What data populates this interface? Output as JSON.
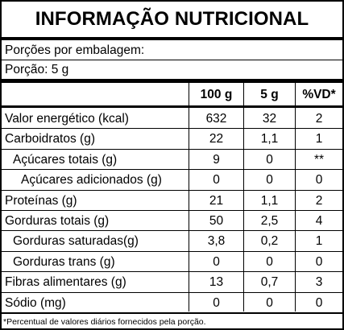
{
  "title": "INFORMAÇÃO NUTRICIONAL",
  "servings_per_package_label": "Porções por embalagem:",
  "serving_size_label": "Porção: 5 g",
  "columns": [
    "100 g",
    "5 g",
    "%VD*"
  ],
  "rows": [
    {
      "name": "Valor energético (kcal)",
      "per100": "632",
      "perServing": "32",
      "vd": "2"
    },
    {
      "name": "Carboidratos (g)",
      "per100": "22",
      "perServing": "1,1",
      "vd": "1"
    },
    {
      "name": "Açúcares totais (g)",
      "per100": "9",
      "perServing": "0",
      "vd": "**"
    },
    {
      "name": "Açúcares adicionados (g)",
      "per100": "0",
      "perServing": "0",
      "vd": "0"
    },
    {
      "name": "Proteínas (g)",
      "per100": "21",
      "perServing": "1,1",
      "vd": "2"
    },
    {
      "name": "Gorduras totais (g)",
      "per100": "50",
      "perServing": "2,5",
      "vd": "4"
    },
    {
      "name": "Gorduras saturadas(g)",
      "per100": "3,8",
      "perServing": "0,2",
      "vd": "1"
    },
    {
      "name": "Gorduras trans (g)",
      "per100": "0",
      "perServing": "0",
      "vd": "0"
    },
    {
      "name": "Fibras alimentares (g)",
      "per100": "13",
      "perServing": "0,7",
      "vd": "3"
    },
    {
      "name": "Sódio (mg)",
      "per100": "0",
      "perServing": "0",
      "vd": "0"
    }
  ],
  "footnote": "*Percentual de valores diários fornecidos pela porção."
}
